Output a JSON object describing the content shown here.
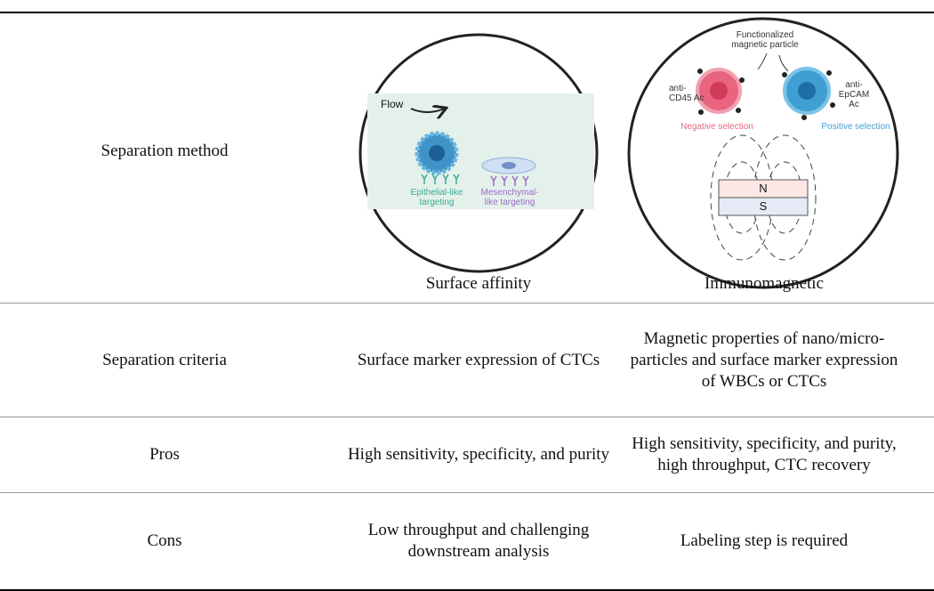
{
  "table": {
    "rows": [
      [
        "Separation method",
        "Surface affinity",
        "Immunomagnetic"
      ],
      [
        "Separation criteria",
        "Surface marker expression of CTCs",
        "Magnetic properties of nano/micro-particles and surface marker expression of WBCs or CTCs"
      ],
      [
        "Pros",
        "High sensitivity, specificity, and purity",
        "High sensitivity, specificity, and purity, high throughput, CTC recovery"
      ],
      [
        "Cons",
        "Low throughput and challenging downstream analysis",
        "Labeling step is required"
      ]
    ]
  },
  "figures": [
    {
      "flow": "Flow",
      "epithelial": "Epithelial-like targeting",
      "mesenchymal": "Mesenchymal-like targeting"
    },
    {
      "particle": "Functionalized magnetic particle",
      "left_label": "anti-CD45 Ac",
      "right_label": "anti-EpCAM Ac",
      "negative": "Negative selection",
      "positive": "Positive selection",
      "north": "N",
      "south": "S"
    }
  ]
}
